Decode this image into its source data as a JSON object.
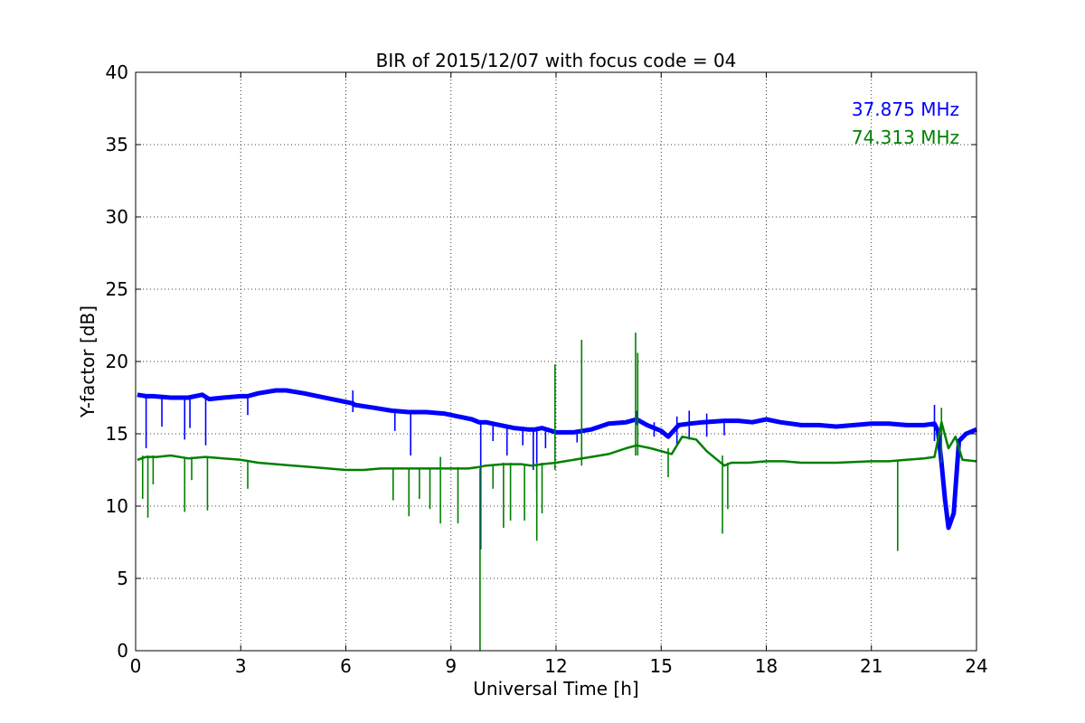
{
  "chart_data": {
    "type": "line",
    "title": "BIR of 2015/12/07 with focus code = 04",
    "xlabel": "Universal Time [h]",
    "ylabel": "Y-factor [dB]",
    "xlim": [
      0,
      24
    ],
    "ylim": [
      0,
      40
    ],
    "xticks": [
      0,
      3,
      6,
      9,
      12,
      15,
      18,
      21,
      24
    ],
    "yticks": [
      0,
      5,
      10,
      15,
      20,
      25,
      30,
      35,
      40
    ],
    "grid": true,
    "legend_placement": "top-right",
    "series": [
      {
        "name": "37.875 MHz",
        "color": "#0000ff",
        "x": [
          0.05,
          0.3,
          0.5,
          1.0,
          1.5,
          1.9,
          2.1,
          2.5,
          3.0,
          3.2,
          3.5,
          4.0,
          4.3,
          4.8,
          5.2,
          5.8,
          6.2,
          6.25,
          6.8,
          7.3,
          7.8,
          8.3,
          8.8,
          9.2,
          9.6,
          9.8,
          10.0,
          10.4,
          10.8,
          11.2,
          11.4,
          11.6,
          12.0,
          12.5,
          13.0,
          13.5,
          14.0,
          14.3,
          14.6,
          15.0,
          15.2,
          15.5,
          15.8,
          16.2,
          16.8,
          17.2,
          17.6,
          18.0,
          18.4,
          19.0,
          19.5,
          20.0,
          20.5,
          21.0,
          21.5,
          22.0,
          22.5,
          22.8,
          22.9,
          23.0,
          23.1,
          23.2,
          23.35,
          23.5,
          23.7,
          24.0
        ],
        "values": [
          17.7,
          17.6,
          17.6,
          17.5,
          17.5,
          17.7,
          17.4,
          17.5,
          17.6,
          17.6,
          17.8,
          18.0,
          18.0,
          17.8,
          17.6,
          17.3,
          17.1,
          17.0,
          16.8,
          16.6,
          16.5,
          16.5,
          16.4,
          16.2,
          16.0,
          15.8,
          15.8,
          15.6,
          15.4,
          15.3,
          15.3,
          15.4,
          15.1,
          15.1,
          15.3,
          15.7,
          15.8,
          16.0,
          15.6,
          15.2,
          14.8,
          15.6,
          15.7,
          15.8,
          15.9,
          15.9,
          15.8,
          16.0,
          15.8,
          15.6,
          15.6,
          15.5,
          15.6,
          15.7,
          15.7,
          15.6,
          15.6,
          15.7,
          15.2,
          13.0,
          10.5,
          8.5,
          9.5,
          14.5,
          15.0,
          15.3
        ],
        "spikes": [
          {
            "x": 0.3,
            "min": 14.0,
            "max": 17.6
          },
          {
            "x": 0.75,
            "min": 15.5,
            "max": 17.6
          },
          {
            "x": 1.4,
            "min": 14.6,
            "max": 17.5
          },
          {
            "x": 1.55,
            "min": 15.4,
            "max": 17.5
          },
          {
            "x": 2.0,
            "min": 14.2,
            "max": 17.6
          },
          {
            "x": 3.2,
            "min": 16.3,
            "max": 17.6
          },
          {
            "x": 6.2,
            "min": 16.5,
            "max": 18.0
          },
          {
            "x": 7.4,
            "min": 15.2,
            "max": 16.6
          },
          {
            "x": 7.85,
            "min": 13.5,
            "max": 16.5
          },
          {
            "x": 9.85,
            "min": 7.0,
            "max": 15.8
          },
          {
            "x": 10.2,
            "min": 14.5,
            "max": 15.8
          },
          {
            "x": 10.6,
            "min": 13.5,
            "max": 15.6
          },
          {
            "x": 11.05,
            "min": 14.2,
            "max": 15.5
          },
          {
            "x": 11.35,
            "min": 12.5,
            "max": 15.3
          },
          {
            "x": 11.45,
            "min": 11.0,
            "max": 15.3
          },
          {
            "x": 11.7,
            "min": 14.0,
            "max": 15.4
          },
          {
            "x": 12.6,
            "min": 14.4,
            "max": 15.2
          },
          {
            "x": 14.3,
            "min": 15.6,
            "max": 16.6
          },
          {
            "x": 14.8,
            "min": 14.8,
            "max": 15.8
          },
          {
            "x": 15.45,
            "min": 14.2,
            "max": 16.2
          },
          {
            "x": 15.8,
            "min": 14.6,
            "max": 16.6
          },
          {
            "x": 16.3,
            "min": 14.8,
            "max": 16.4
          },
          {
            "x": 16.8,
            "min": 14.9,
            "max": 16.0
          },
          {
            "x": 22.8,
            "min": 14.5,
            "max": 17.0
          }
        ]
      },
      {
        "name": "74.313 MHz",
        "color": "#008000",
        "x": [
          0.05,
          0.3,
          0.6,
          1.0,
          1.5,
          2.0,
          2.5,
          3.0,
          3.5,
          4.0,
          4.5,
          5.0,
          5.5,
          6.0,
          6.5,
          7.0,
          7.5,
          8.0,
          8.5,
          9.0,
          9.5,
          9.8,
          10.0,
          10.5,
          11.0,
          11.3,
          11.6,
          12.0,
          12.5,
          13.0,
          13.5,
          14.0,
          14.3,
          14.7,
          15.0,
          15.3,
          15.6,
          16.0,
          16.3,
          16.6,
          16.8,
          17.0,
          17.5,
          18.0,
          18.5,
          19.0,
          20.0,
          21.0,
          21.5,
          22.0,
          22.5,
          22.8,
          23.0,
          23.2,
          23.4,
          23.6,
          24.0
        ],
        "values": [
          13.2,
          13.4,
          13.4,
          13.5,
          13.3,
          13.4,
          13.3,
          13.2,
          13.0,
          12.9,
          12.8,
          12.7,
          12.6,
          12.5,
          12.5,
          12.6,
          12.6,
          12.6,
          12.6,
          12.6,
          12.6,
          12.7,
          12.8,
          12.9,
          12.9,
          12.8,
          12.9,
          13.0,
          13.2,
          13.4,
          13.6,
          14.0,
          14.2,
          14.0,
          13.8,
          13.6,
          14.8,
          14.6,
          13.8,
          13.2,
          12.8,
          13.0,
          13.0,
          13.1,
          13.1,
          13.0,
          13.0,
          13.1,
          13.1,
          13.2,
          13.3,
          13.4,
          15.8,
          14.0,
          14.8,
          13.2,
          13.1
        ],
        "spikes": [
          {
            "x": 0.2,
            "min": 10.5,
            "max": 13.5
          },
          {
            "x": 0.35,
            "min": 9.2,
            "max": 13.5
          },
          {
            "x": 0.5,
            "min": 11.5,
            "max": 13.5
          },
          {
            "x": 1.4,
            "min": 9.6,
            "max": 13.4
          },
          {
            "x": 1.6,
            "min": 11.8,
            "max": 13.4
          },
          {
            "x": 2.05,
            "min": 9.7,
            "max": 13.4
          },
          {
            "x": 3.2,
            "min": 11.2,
            "max": 13.2
          },
          {
            "x": 7.35,
            "min": 10.4,
            "max": 12.6
          },
          {
            "x": 7.8,
            "min": 9.3,
            "max": 12.6
          },
          {
            "x": 8.1,
            "min": 10.5,
            "max": 12.6
          },
          {
            "x": 8.4,
            "min": 9.8,
            "max": 12.6
          },
          {
            "x": 8.7,
            "min": 8.8,
            "max": 13.4
          },
          {
            "x": 9.2,
            "min": 8.8,
            "max": 12.7
          },
          {
            "x": 9.83,
            "min": 0.0,
            "max": 12.6
          },
          {
            "x": 10.2,
            "min": 11.2,
            "max": 12.8
          },
          {
            "x": 10.5,
            "min": 8.5,
            "max": 13.0
          },
          {
            "x": 10.7,
            "min": 9.0,
            "max": 13.0
          },
          {
            "x": 11.1,
            "min": 9.0,
            "max": 12.9
          },
          {
            "x": 11.45,
            "min": 7.6,
            "max": 13.0
          },
          {
            "x": 11.6,
            "min": 9.5,
            "max": 13.0
          },
          {
            "x": 11.97,
            "min": 12.5,
            "max": 19.8
          },
          {
            "x": 12.73,
            "min": 12.8,
            "max": 21.5
          },
          {
            "x": 14.27,
            "min": 13.5,
            "max": 22.0
          },
          {
            "x": 14.33,
            "min": 13.5,
            "max": 20.6
          },
          {
            "x": 15.2,
            "min": 12.0,
            "max": 14.0
          },
          {
            "x": 16.75,
            "min": 8.1,
            "max": 13.5
          },
          {
            "x": 16.9,
            "min": 9.8,
            "max": 13.0
          },
          {
            "x": 21.75,
            "min": 6.9,
            "max": 13.2
          },
          {
            "x": 23.0,
            "min": 13.0,
            "max": 16.8
          }
        ]
      }
    ]
  }
}
